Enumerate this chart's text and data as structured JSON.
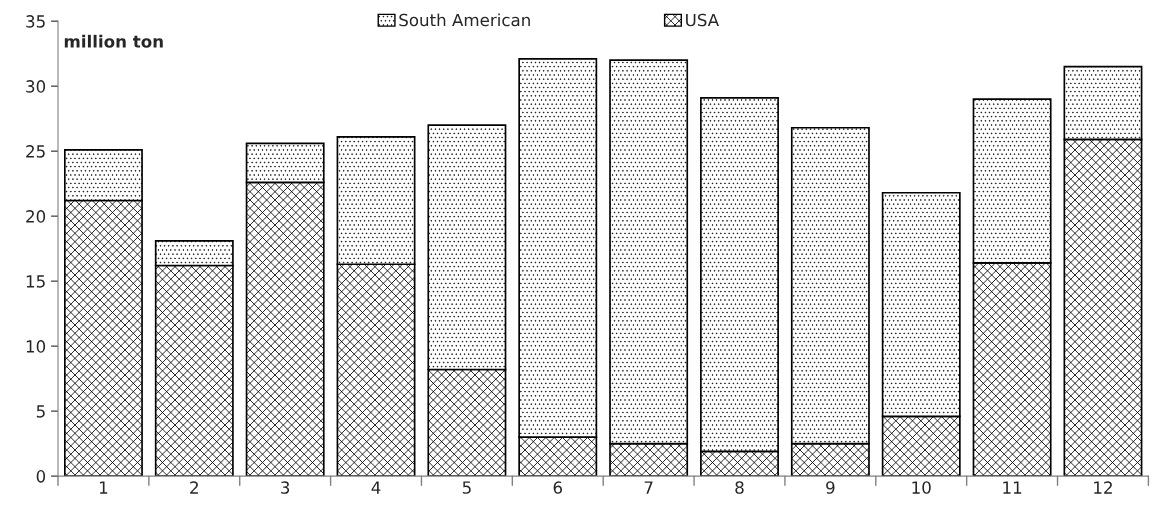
{
  "chart_data": {
    "type": "bar",
    "ylabel": "million ton",
    "stacked": true,
    "categories": [
      "1",
      "2",
      "3",
      "4",
      "5",
      "6",
      "7",
      "8",
      "9",
      "10",
      "11",
      "12"
    ],
    "series": [
      {
        "name": "USA",
        "color": "#000000",
        "values": [
          21.2,
          16.2,
          22.6,
          16.3,
          8.2,
          3.0,
          2.5,
          1.9,
          2.5,
          4.6,
          16.4,
          25.9
        ]
      },
      {
        "name": "South American",
        "color": "#000000",
        "values": [
          3.9,
          1.9,
          3.0,
          9.8,
          18.8,
          29.1,
          29.5,
          27.2,
          24.3,
          17.2,
          12.6,
          5.6
        ]
      }
    ],
    "ylim": [
      0,
      35
    ],
    "yticks": [
      0,
      5,
      10,
      15,
      20,
      25,
      30,
      35
    ],
    "grid": false,
    "legend": "top"
  }
}
